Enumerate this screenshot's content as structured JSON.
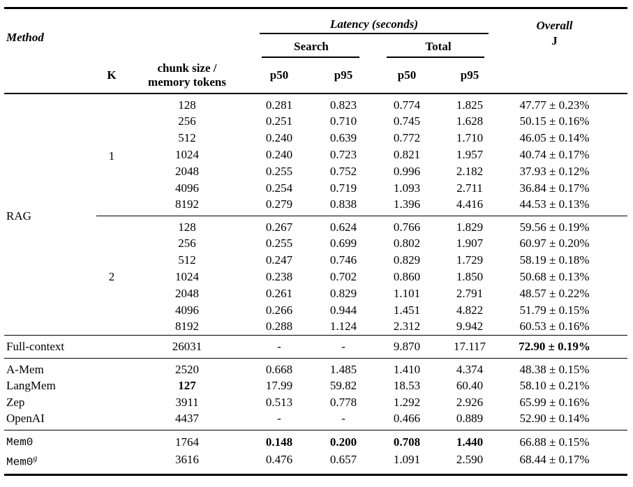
{
  "header": {
    "method": "Method",
    "k": "K",
    "chunk_line1": "chunk size /",
    "chunk_line2": "memory tokens",
    "latency_group": "Latency (seconds)",
    "search": "Search",
    "total": "Total",
    "search_p50": "p50",
    "search_p95": "p95",
    "total_p50": "p50",
    "total_p95": "p95",
    "overall_line1": "Overall",
    "overall_line2": "J"
  },
  "rag": {
    "method": "RAG",
    "blocks": [
      {
        "k": "1",
        "rows": [
          {
            "chunk": "128",
            "sp50": "0.281",
            "sp95": "0.823",
            "tp50": "0.774",
            "tp95": "1.825",
            "overall": "47.77 ± 0.23%"
          },
          {
            "chunk": "256",
            "sp50": "0.251",
            "sp95": "0.710",
            "tp50": "0.745",
            "tp95": "1.628",
            "overall": "50.15 ± 0.16%"
          },
          {
            "chunk": "512",
            "sp50": "0.240",
            "sp95": "0.639",
            "tp50": "0.772",
            "tp95": "1.710",
            "overall": "46.05 ± 0.14%"
          },
          {
            "chunk": "1024",
            "sp50": "0.240",
            "sp95": "0.723",
            "tp50": "0.821",
            "tp95": "1.957",
            "overall": "40.74 ± 0.17%"
          },
          {
            "chunk": "2048",
            "sp50": "0.255",
            "sp95": "0.752",
            "tp50": "0.996",
            "tp95": "2.182",
            "overall": "37.93 ± 0.12%"
          },
          {
            "chunk": "4096",
            "sp50": "0.254",
            "sp95": "0.719",
            "tp50": "1.093",
            "tp95": "2.711",
            "overall": "36.84 ± 0.17%"
          },
          {
            "chunk": "8192",
            "sp50": "0.279",
            "sp95": "0.838",
            "tp50": "1.396",
            "tp95": "4.416",
            "overall": "44.53 ± 0.13%"
          }
        ]
      },
      {
        "k": "2",
        "rows": [
          {
            "chunk": "128",
            "sp50": "0.267",
            "sp95": "0.624",
            "tp50": "0.766",
            "tp95": "1.829",
            "overall": "59.56 ± 0.19%"
          },
          {
            "chunk": "256",
            "sp50": "0.255",
            "sp95": "0.699",
            "tp50": "0.802",
            "tp95": "1.907",
            "overall": "60.97 ± 0.20%"
          },
          {
            "chunk": "512",
            "sp50": "0.247",
            "sp95": "0.746",
            "tp50": "0.829",
            "tp95": "1.729",
            "overall": "58.19 ± 0.18%"
          },
          {
            "chunk": "1024",
            "sp50": "0.238",
            "sp95": "0.702",
            "tp50": "0.860",
            "tp95": "1.850",
            "overall": "50.68 ± 0.13%"
          },
          {
            "chunk": "2048",
            "sp50": "0.261",
            "sp95": "0.829",
            "tp50": "1.101",
            "tp95": "2.791",
            "overall": "48.57 ± 0.22%"
          },
          {
            "chunk": "4096",
            "sp50": "0.266",
            "sp95": "0.944",
            "tp50": "1.451",
            "tp95": "4.822",
            "overall": "51.79 ± 0.15%"
          },
          {
            "chunk": "8192",
            "sp50": "0.288",
            "sp95": "1.124",
            "tp50": "2.312",
            "tp95": "9.942",
            "overall": "60.53 ± 0.16%"
          }
        ]
      }
    ]
  },
  "full_context": {
    "method": "Full-context",
    "chunk": "26031",
    "sp50": "-",
    "sp95": "-",
    "tp50": "9.870",
    "tp95": "17.117",
    "overall": "72.90 ± 0.19%",
    "bold": [
      "overall"
    ]
  },
  "memory_systems": [
    {
      "method": "A-Mem",
      "chunk": "2520",
      "sp50": "0.668",
      "sp95": "1.485",
      "tp50": "1.410",
      "tp95": "4.374",
      "overall": "48.38 ± 0.15%"
    },
    {
      "method": "LangMem",
      "chunk": "127",
      "sp50": "17.99",
      "sp95": "59.82",
      "tp50": "18.53",
      "tp95": "60.40",
      "overall": "58.10 ± 0.21%",
      "bold": [
        "chunk"
      ]
    },
    {
      "method": "Zep",
      "chunk": "3911",
      "sp50": "0.513",
      "sp95": "0.778",
      "tp50": "1.292",
      "tp95": "2.926",
      "overall": "65.99 ± 0.16%"
    },
    {
      "method": "OpenAI",
      "chunk": "4437",
      "sp50": "-",
      "sp95": "-",
      "tp50": "0.466",
      "tp95": "0.889",
      "overall": "52.90 ± 0.14%"
    }
  ],
  "mem0_rows": [
    {
      "method": "Mem0",
      "mono": true,
      "chunk": "1764",
      "sp50": "0.148",
      "sp95": "0.200",
      "tp50": "0.708",
      "tp95": "1.440",
      "overall": "66.88 ± 0.15%",
      "bold": [
        "sp50",
        "sp95",
        "tp50",
        "tp95"
      ]
    },
    {
      "method": "Mem0",
      "mono": true,
      "sup": "g",
      "chunk": "3616",
      "sp50": "0.476",
      "sp95": "0.657",
      "tp50": "1.091",
      "tp95": "2.590",
      "overall": "68.44 ± 0.17%"
    }
  ]
}
